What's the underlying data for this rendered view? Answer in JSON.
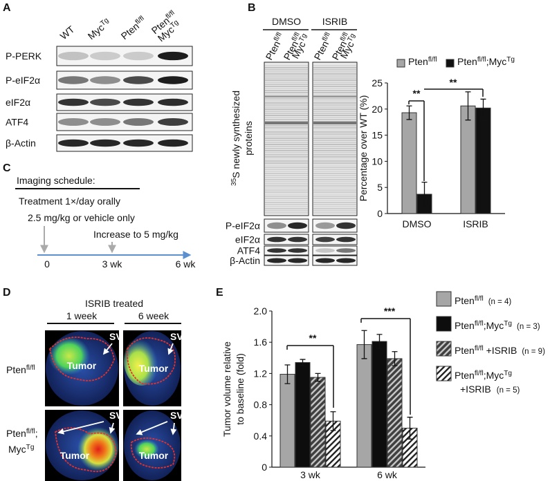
{
  "panel_labels": [
    "A",
    "B",
    "C",
    "D",
    "E"
  ],
  "panel_a": {
    "lanes": [
      [
        [
          "WT"
        ]
      ],
      [
        [
          "Myc",
          {
            "sup": "Tg"
          }
        ]
      ],
      [
        [
          "Pten",
          {
            "sup": "fl/fl"
          }
        ]
      ],
      [
        [
          "Pten",
          {
            "sup": "fl/fl"
          }
        ],
        [
          "Myc",
          {
            "sup": "Tg"
          }
        ]
      ]
    ],
    "rows": [
      "P-PERK",
      "P-eIF2α",
      "eIF2α",
      "ATF4",
      "β-Actin"
    ]
  },
  "panel_b_blot": {
    "groups": [
      "DMSO",
      "ISRIB"
    ],
    "lanes": [
      [
        [
          "Pten",
          {
            "sup": "fl/fl"
          }
        ]
      ],
      [
        [
          "Pten",
          {
            "sup": "fl/fl"
          }
        ],
        [
          "Myc",
          {
            "sup": "Tg"
          }
        ]
      ]
    ],
    "gel_label": [
      [
        {
          "sup": "35"
        },
        "S newly synthesized"
      ],
      [
        "proteins"
      ]
    ],
    "rows": [
      "P-eIF2α",
      "eIF2α",
      "ATF4",
      "β-Actin"
    ]
  },
  "chart_data": [
    {
      "type": "bar",
      "y_label": "Percentage over WT (%)",
      "categories": [
        "DMSO",
        "ISRIB"
      ],
      "series": [
        {
          "name": [
            "Pten",
            {
              "sup": "fl/fl"
            }
          ],
          "color": "#a6a6a6",
          "values": [
            19.3,
            20.6
          ],
          "errors": [
            1.3,
            2.7
          ]
        },
        {
          "name": [
            "Pten",
            {
              "sup": "fl/fl"
            },
            ";Myc",
            {
              "sup": "Tg"
            }
          ],
          "color": "#111111",
          "values": [
            3.7,
            20.2
          ],
          "errors": [
            2.3,
            1.7
          ]
        }
      ],
      "ylim": [
        0,
        25
      ],
      "yticks": [
        0,
        5,
        10,
        15,
        20,
        25
      ],
      "grid": false,
      "legend": "top",
      "annotations": [
        "**",
        "**"
      ]
    },
    {
      "type": "bar",
      "y_label": [
        "Tumor volume relative",
        "to baseline (fold)"
      ],
      "categories": [
        "3 wk",
        "6 wk"
      ],
      "series": [
        {
          "name": [
            "Pten",
            {
              "sup": "fl/fl"
            }
          ],
          "n_label": "(n = 4)",
          "color": "#a6a6a6",
          "values": [
            1.19,
            1.57
          ],
          "errors": [
            0.12,
            0.18
          ]
        },
        {
          "name": [
            "Pten",
            {
              "sup": "fl/fl"
            },
            ";Myc",
            {
              "sup": "Tg"
            }
          ],
          "n_label": "(n = 3)",
          "color": "#0d0d0d",
          "values": [
            1.34,
            1.61
          ],
          "errors": [
            0.04,
            0.09
          ]
        },
        {
          "name": [
            "Pten",
            {
              "sup": "fl/fl"
            },
            " +ISRIB"
          ],
          "n_label": "(n = 9)",
          "color": "#404040",
          "hatch": "#c8c8c8",
          "values": [
            1.15,
            1.39
          ],
          "errors": [
            0.05,
            0.09
          ]
        },
        {
          "name": [
            "Pten",
            {
              "sup": "fl/fl"
            },
            ";Myc",
            {
              "sup": "Tg"
            }
          ],
          "name_line2": "+ISRIB",
          "n_label": "(n = 5)",
          "color": "#ffffff",
          "hatch": "#202020",
          "values": [
            0.59,
            0.5
          ],
          "errors": [
            0.12,
            0.14
          ]
        }
      ],
      "ylim": [
        0,
        2
      ],
      "yticks": [
        0,
        0.4,
        0.8,
        1.2,
        1.6,
        {
          "value": 2,
          "label": "2.0"
        }
      ],
      "grid": false,
      "legend": "right",
      "annotations": [
        "**",
        "***"
      ]
    }
  ],
  "panel_c": {
    "title": "Imaging schedule:",
    "lines": [
      "Treatment 1×/day orally",
      "2.5 mg/kg or vehicle only",
      "Increase to 5 mg/kg"
    ],
    "timeline": [
      "0",
      "3 wk",
      "6 wk"
    ]
  },
  "panel_d": {
    "title": "ISRIB treated",
    "columns": [
      "1 week",
      "6 week"
    ],
    "rows": [
      [
        [
          "Pten",
          {
            "sup": "fl/fl"
          }
        ]
      ],
      [
        [
          "Pten",
          {
            "sup": "fl/fl"
          },
          ";"
        ],
        [
          "Myc",
          {
            "sup": "Tg"
          }
        ]
      ]
    ],
    "tumor_label": "Tumor",
    "sv_label": "SV"
  }
}
